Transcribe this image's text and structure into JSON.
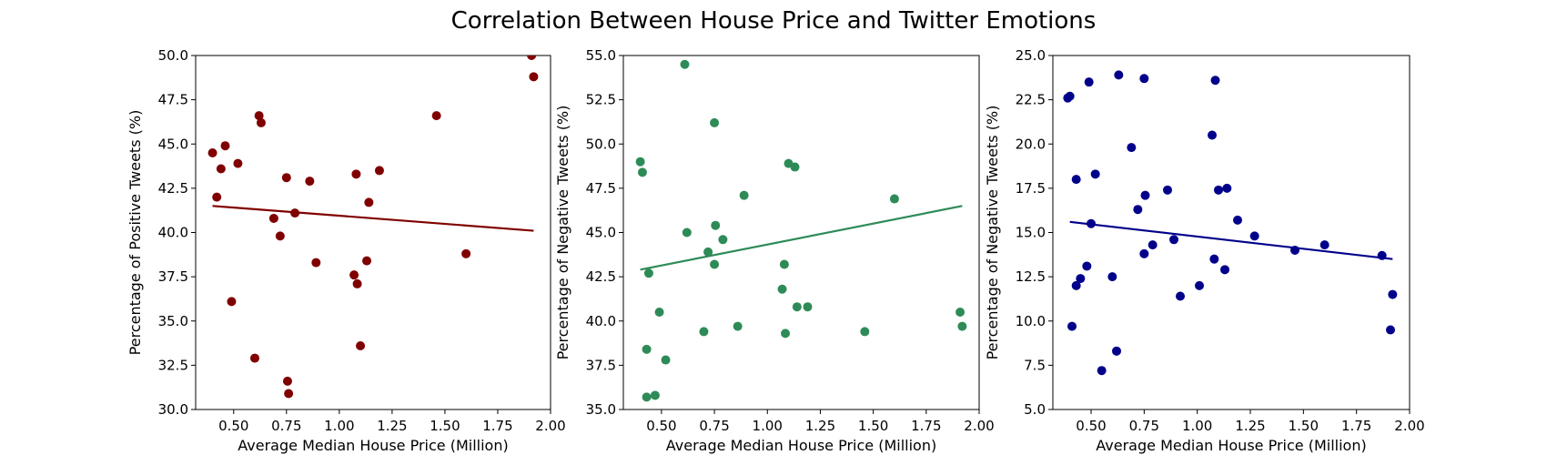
{
  "figure": {
    "title": "Correlation Between House Price and Twitter Emotions"
  },
  "chart_data": [
    {
      "type": "scatter",
      "xlabel": "Average Median House Price (Million)",
      "ylabel": "Percentage of Positive Tweets (%)",
      "xlim": [
        0.32,
        2.0
      ],
      "ylim": [
        30.0,
        50.0
      ],
      "xticks": [
        "0.50",
        "0.75",
        "1.00",
        "1.25",
        "1.50",
        "1.75",
        "2.00"
      ],
      "yticks": [
        "30.0",
        "32.5",
        "35.0",
        "37.5",
        "40.0",
        "42.5",
        "45.0",
        "47.5",
        "50.0"
      ],
      "color": "#800000",
      "points": [
        [
          0.4,
          44.5
        ],
        [
          0.42,
          42.0
        ],
        [
          0.44,
          43.6
        ],
        [
          0.46,
          44.9
        ],
        [
          0.49,
          36.1
        ],
        [
          0.52,
          43.9
        ],
        [
          0.6,
          32.9
        ],
        [
          0.62,
          46.6
        ],
        [
          0.63,
          46.2
        ],
        [
          0.69,
          40.8
        ],
        [
          0.72,
          39.8
        ],
        [
          0.75,
          43.1
        ],
        [
          0.755,
          31.6
        ],
        [
          0.76,
          30.9
        ],
        [
          0.79,
          41.1
        ],
        [
          0.86,
          42.9
        ],
        [
          0.89,
          38.3
        ],
        [
          1.07,
          37.6
        ],
        [
          1.08,
          43.3
        ],
        [
          1.085,
          37.1
        ],
        [
          1.1,
          33.6
        ],
        [
          1.13,
          38.4
        ],
        [
          1.14,
          41.7
        ],
        [
          1.19,
          43.5
        ],
        [
          1.46,
          46.6
        ],
        [
          1.6,
          38.8
        ],
        [
          1.91,
          50.0
        ],
        [
          1.92,
          48.8
        ]
      ],
      "trendline": [
        [
          0.4,
          41.5
        ],
        [
          1.92,
          40.1
        ]
      ]
    },
    {
      "type": "scatter",
      "xlabel": "Average Median House Price (Million)",
      "ylabel": "Percentage of Negative Tweets (%)",
      "xlim": [
        0.32,
        2.0
      ],
      "ylim": [
        35.0,
        55.0
      ],
      "xticks": [
        "0.50",
        "0.75",
        "1.00",
        "1.25",
        "1.50",
        "1.75",
        "2.00"
      ],
      "yticks": [
        "35.0",
        "37.5",
        "40.0",
        "42.5",
        "45.0",
        "47.5",
        "50.0",
        "52.5",
        "55.0"
      ],
      "color": "#2e8b57",
      "points": [
        [
          0.4,
          49.0
        ],
        [
          0.41,
          48.4
        ],
        [
          0.43,
          38.4
        ],
        [
          0.44,
          42.7
        ],
        [
          0.43,
          35.7
        ],
        [
          0.47,
          35.8
        ],
        [
          0.49,
          40.5
        ],
        [
          0.52,
          37.8
        ],
        [
          0.61,
          54.5
        ],
        [
          0.62,
          45.0
        ],
        [
          0.7,
          39.4
        ],
        [
          0.72,
          43.9
        ],
        [
          0.75,
          51.2
        ],
        [
          0.755,
          45.4
        ],
        [
          0.75,
          43.2
        ],
        [
          0.79,
          44.6
        ],
        [
          0.86,
          39.7
        ],
        [
          0.89,
          47.1
        ],
        [
          1.07,
          41.8
        ],
        [
          1.08,
          43.2
        ],
        [
          1.085,
          39.3
        ],
        [
          1.1,
          48.9
        ],
        [
          1.13,
          48.7
        ],
        [
          1.14,
          40.8
        ],
        [
          1.19,
          40.8
        ],
        [
          1.46,
          39.4
        ],
        [
          1.6,
          46.9
        ],
        [
          1.91,
          40.5
        ],
        [
          1.92,
          39.7
        ]
      ],
      "trendline": [
        [
          0.4,
          42.9
        ],
        [
          1.92,
          46.5
        ]
      ]
    },
    {
      "type": "scatter",
      "xlabel": "Average Median House Price (Million)",
      "ylabel": "Percentage of Negative Tweets (%)",
      "xlim": [
        0.32,
        2.0
      ],
      "ylim": [
        5.0,
        25.0
      ],
      "xticks": [
        "0.50",
        "0.75",
        "1.00",
        "1.25",
        "1.50",
        "1.75",
        "2.00"
      ],
      "yticks": [
        "5.0",
        "7.5",
        "10.0",
        "12.5",
        "15.0",
        "17.5",
        "20.0",
        "22.5",
        "25.0"
      ],
      "color": "#00008b",
      "points": [
        [
          0.39,
          22.6
        ],
        [
          0.4,
          22.7
        ],
        [
          0.41,
          9.7
        ],
        [
          0.43,
          12.0
        ],
        [
          0.43,
          18.0
        ],
        [
          0.45,
          12.4
        ],
        [
          0.48,
          13.1
        ],
        [
          0.49,
          23.5
        ],
        [
          0.5,
          15.5
        ],
        [
          0.52,
          18.3
        ],
        [
          0.55,
          7.2
        ],
        [
          0.6,
          12.5
        ],
        [
          0.62,
          8.3
        ],
        [
          0.63,
          23.9
        ],
        [
          0.69,
          19.8
        ],
        [
          0.72,
          16.3
        ],
        [
          0.75,
          23.7
        ],
        [
          0.755,
          17.1
        ],
        [
          0.75,
          13.8
        ],
        [
          0.79,
          14.3
        ],
        [
          0.86,
          17.4
        ],
        [
          0.89,
          14.6
        ],
        [
          0.92,
          11.4
        ],
        [
          1.01,
          12.0
        ],
        [
          1.07,
          20.5
        ],
        [
          1.08,
          13.5
        ],
        [
          1.085,
          23.6
        ],
        [
          1.1,
          17.4
        ],
        [
          1.13,
          12.9
        ],
        [
          1.14,
          17.5
        ],
        [
          1.19,
          15.7
        ],
        [
          1.27,
          14.8
        ],
        [
          1.46,
          14.0
        ],
        [
          1.6,
          14.3
        ],
        [
          1.87,
          13.7
        ],
        [
          1.91,
          9.5
        ],
        [
          1.92,
          11.5
        ]
      ],
      "trendline": [
        [
          0.4,
          15.6
        ],
        [
          1.92,
          13.5
        ]
      ]
    }
  ]
}
